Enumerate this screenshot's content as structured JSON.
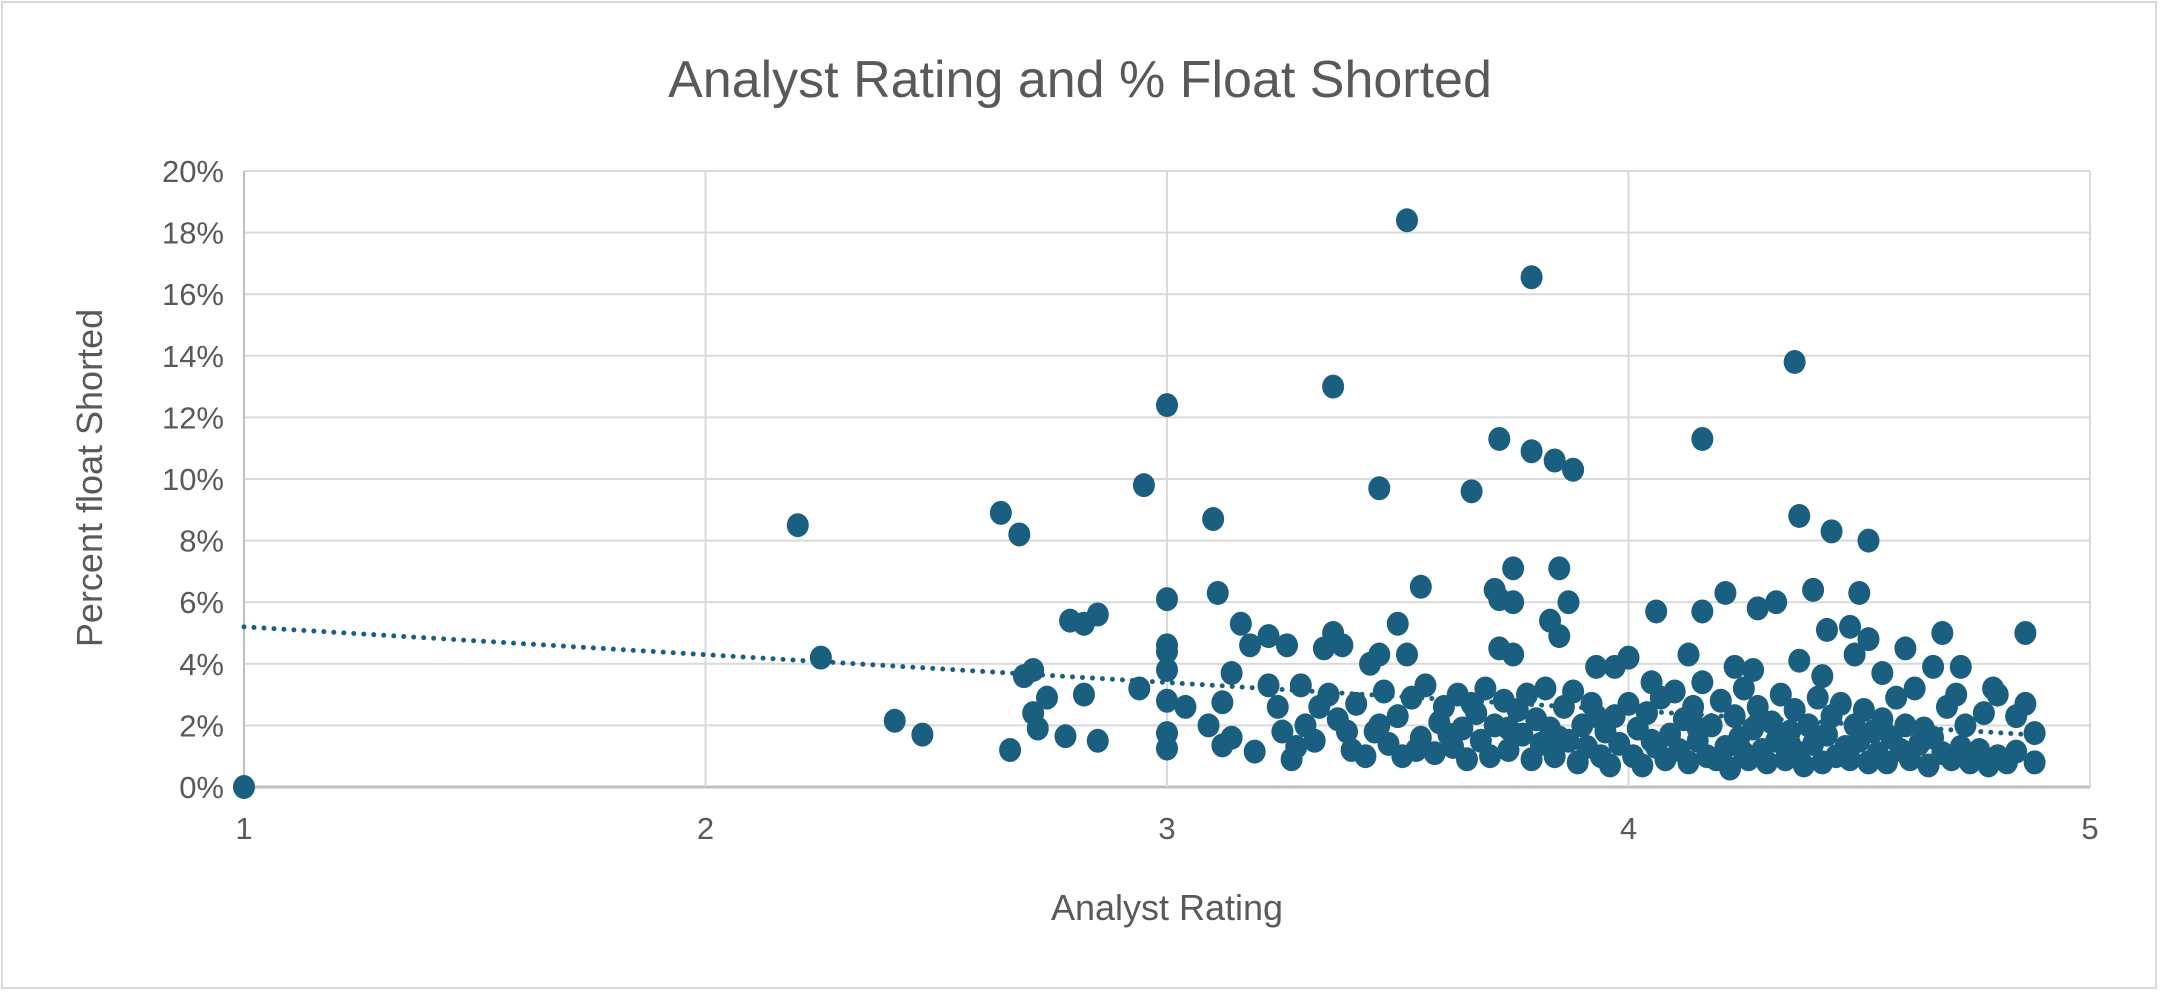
{
  "chart_data": {
    "type": "scatter",
    "title": "Analyst Rating and % Float Shorted",
    "xlabel": "Analyst Rating",
    "ylabel": "Percent float Shorted",
    "xlim": [
      1,
      5
    ],
    "ylim": [
      0,
      20
    ],
    "x_ticks": [
      "1",
      "2",
      "3",
      "4",
      "5"
    ],
    "y_ticks": [
      "0%",
      "2%",
      "4%",
      "6%",
      "8%",
      "10%",
      "12%",
      "14%",
      "16%",
      "18%",
      "20%"
    ],
    "grid": true,
    "legend": "none",
    "marker_color": "#1b5f80",
    "trendline": {
      "type": "linear",
      "style": "dotted",
      "start": [
        1,
        5.2
      ],
      "end": [
        4.87,
        1.7
      ]
    },
    "points": [
      [
        1,
        0
      ],
      [
        2.2,
        8.5
      ],
      [
        2.25,
        4.2
      ],
      [
        2.41,
        2.15
      ],
      [
        2.47,
        1.7
      ],
      [
        2.64,
        8.9
      ],
      [
        2.68,
        8.2
      ],
      [
        2.66,
        1.2
      ],
      [
        2.69,
        3.6
      ],
      [
        2.71,
        3.8
      ],
      [
        2.71,
        2.4
      ],
      [
        2.72,
        1.9
      ],
      [
        2.74,
        2.9
      ],
      [
        2.78,
        1.65
      ],
      [
        2.79,
        5.4
      ],
      [
        2.82,
        5.3
      ],
      [
        2.85,
        5.6
      ],
      [
        2.82,
        3.0
      ],
      [
        2.85,
        1.5
      ],
      [
        2.95,
        9.8
      ],
      [
        2.94,
        3.2
      ],
      [
        3.0,
        12.4
      ],
      [
        3.0,
        6.1
      ],
      [
        3.0,
        4.6
      ],
      [
        3.0,
        4.4
      ],
      [
        3.0,
        3.8
      ],
      [
        3.0,
        2.8
      ],
      [
        3.0,
        1.75
      ],
      [
        3.0,
        1.25
      ],
      [
        3.1,
        8.7
      ],
      [
        3.11,
        6.3
      ],
      [
        3.04,
        2.6
      ],
      [
        3.09,
        2.0
      ],
      [
        3.12,
        2.75
      ],
      [
        3.14,
        3.7
      ],
      [
        3.12,
        1.35
      ],
      [
        3.14,
        1.6
      ],
      [
        3.16,
        5.3
      ],
      [
        3.18,
        4.6
      ],
      [
        3.22,
        4.9
      ],
      [
        3.26,
        4.6
      ],
      [
        3.19,
        1.15
      ],
      [
        3.22,
        3.3
      ],
      [
        3.24,
        2.6
      ],
      [
        3.27,
        0.9
      ],
      [
        3.29,
        3.3
      ],
      [
        3.36,
        13.0
      ],
      [
        3.46,
        9.7
      ],
      [
        3.36,
        5.0
      ],
      [
        3.34,
        4.5
      ],
      [
        3.38,
        4.6
      ],
      [
        3.46,
        4.3
      ],
      [
        3.44,
        4.0
      ],
      [
        3.5,
        5.3
      ],
      [
        3.52,
        18.4
      ],
      [
        3.52,
        4.3
      ],
      [
        3.55,
        6.5
      ],
      [
        3.66,
        9.6
      ],
      [
        3.72,
        11.3
      ],
      [
        3.79,
        16.55
      ],
      [
        3.79,
        10.9
      ],
      [
        3.84,
        10.6
      ],
      [
        3.88,
        10.3
      ],
      [
        3.75,
        7.1
      ],
      [
        3.85,
        7.1
      ],
      [
        3.71,
        6.4
      ],
      [
        3.72,
        6.1
      ],
      [
        3.75,
        6.0
      ],
      [
        3.87,
        6.0
      ],
      [
        3.72,
        4.5
      ],
      [
        3.75,
        4.3
      ],
      [
        3.83,
        5.4
      ],
      [
        3.85,
        4.9
      ],
      [
        3.93,
        3.9
      ],
      [
        3.97,
        3.9
      ],
      [
        4.0,
        4.2
      ],
      [
        4.06,
        5.7
      ],
      [
        4.36,
        13.8
      ],
      [
        4.16,
        11.3
      ],
      [
        4.37,
        8.8
      ],
      [
        4.44,
        8.3
      ],
      [
        4.52,
        8.0
      ],
      [
        4.4,
        6.4
      ],
      [
        4.21,
        6.3
      ],
      [
        4.16,
        5.7
      ],
      [
        4.32,
        6.0
      ],
      [
        4.28,
        5.8
      ],
      [
        4.43,
        5.1
      ],
      [
        4.48,
        5.2
      ],
      [
        4.5,
        6.3
      ],
      [
        4.52,
        4.8
      ],
      [
        4.55,
        3.7
      ],
      [
        4.6,
        4.5
      ],
      [
        4.68,
        5.0
      ],
      [
        4.86,
        5.0
      ],
      [
        4.37,
        4.1
      ],
      [
        4.42,
        3.6
      ],
      [
        4.49,
        4.3
      ],
      [
        4.13,
        4.3
      ],
      [
        4.05,
        3.4
      ],
      [
        4.23,
        3.9
      ],
      [
        4.27,
        3.8
      ],
      [
        4.66,
        3.9
      ],
      [
        4.72,
        3.9
      ],
      [
        4.62,
        3.2
      ],
      [
        4.71,
        3.0
      ],
      [
        4.79,
        3.2
      ],
      [
        4.8,
        3.0
      ],
      [
        4.77,
        2.4
      ],
      [
        4.86,
        2.7
      ],
      [
        4.84,
        2.3
      ],
      [
        4.88,
        1.75
      ],
      [
        4.88,
        0.8
      ],
      [
        4.84,
        1.15
      ],
      [
        3.3,
        2.0
      ],
      [
        3.32,
        1.5
      ],
      [
        3.35,
        3.0
      ],
      [
        3.37,
        2.2
      ],
      [
        3.4,
        1.2
      ],
      [
        3.41,
        2.7
      ],
      [
        3.43,
        1.0
      ],
      [
        3.45,
        1.8
      ],
      [
        3.47,
        3.1
      ],
      [
        3.48,
        1.4
      ],
      [
        3.5,
        2.3
      ],
      [
        3.51,
        1.0
      ],
      [
        3.53,
        2.9
      ],
      [
        3.55,
        1.6
      ],
      [
        3.56,
        3.3
      ],
      [
        3.58,
        1.1
      ],
      [
        3.59,
        2.1
      ],
      [
        3.6,
        2.6
      ],
      [
        3.62,
        1.3
      ],
      [
        3.63,
        3.0
      ],
      [
        3.64,
        1.9
      ],
      [
        3.65,
        0.9
      ],
      [
        3.67,
        2.4
      ],
      [
        3.68,
        1.5
      ],
      [
        3.69,
        3.2
      ],
      [
        3.7,
        1.0
      ],
      [
        3.71,
        2.0
      ],
      [
        3.73,
        2.8
      ],
      [
        3.74,
        1.2
      ],
      [
        3.76,
        2.5
      ],
      [
        3.77,
        1.7
      ],
      [
        3.78,
        3.0
      ],
      [
        3.79,
        0.9
      ],
      [
        3.8,
        2.2
      ],
      [
        3.81,
        1.4
      ],
      [
        3.82,
        3.2
      ],
      [
        3.83,
        1.9
      ],
      [
        3.84,
        1.0
      ],
      [
        3.86,
        2.6
      ],
      [
        3.87,
        1.5
      ],
      [
        3.88,
        3.1
      ],
      [
        3.89,
        0.8
      ],
      [
        3.9,
        2.0
      ],
      [
        3.91,
        1.3
      ],
      [
        3.92,
        2.7
      ],
      [
        3.94,
        1.0
      ],
      [
        3.95,
        1.8
      ],
      [
        3.96,
        0.7
      ],
      [
        3.97,
        2.3
      ],
      [
        3.98,
        1.4
      ],
      [
        4.0,
        2.7
      ],
      [
        4.01,
        1.0
      ],
      [
        4.02,
        1.9
      ],
      [
        4.03,
        0.7
      ],
      [
        4.04,
        2.4
      ],
      [
        4.06,
        1.3
      ],
      [
        4.07,
        2.9
      ],
      [
        4.08,
        0.9
      ],
      [
        4.09,
        1.7
      ],
      [
        4.1,
        3.1
      ],
      [
        4.11,
        1.2
      ],
      [
        4.12,
        2.2
      ],
      [
        4.13,
        0.8
      ],
      [
        4.14,
        2.6
      ],
      [
        4.15,
        1.5
      ],
      [
        4.16,
        3.4
      ],
      [
        4.17,
        1.0
      ],
      [
        4.18,
        2.0
      ],
      [
        4.19,
        0.9
      ],
      [
        4.2,
        2.8
      ],
      [
        4.21,
        1.3
      ],
      [
        4.22,
        0.6
      ],
      [
        4.23,
        2.3
      ],
      [
        4.24,
        1.6
      ],
      [
        4.25,
        3.2
      ],
      [
        4.26,
        0.9
      ],
      [
        4.27,
        1.9
      ],
      [
        4.28,
        2.6
      ],
      [
        4.29,
        1.2
      ],
      [
        4.3,
        0.8
      ],
      [
        4.31,
        2.1
      ],
      [
        4.32,
        1.5
      ],
      [
        4.33,
        3.0
      ],
      [
        4.34,
        0.9
      ],
      [
        4.35,
        1.8
      ],
      [
        4.36,
        2.5
      ],
      [
        4.37,
        1.1
      ],
      [
        4.38,
        0.7
      ],
      [
        4.39,
        2.0
      ],
      [
        4.4,
        1.4
      ],
      [
        4.41,
        2.9
      ],
      [
        4.42,
        0.8
      ],
      [
        4.43,
        1.7
      ],
      [
        4.44,
        2.3
      ],
      [
        4.45,
        1.0
      ],
      [
        4.46,
        2.7
      ],
      [
        4.47,
        1.3
      ],
      [
        4.48,
        0.9
      ],
      [
        4.49,
        2.0
      ],
      [
        4.5,
        1.5
      ],
      [
        4.51,
        2.5
      ],
      [
        4.52,
        0.8
      ],
      [
        4.53,
        1.8
      ],
      [
        4.54,
        1.1
      ],
      [
        4.55,
        2.2
      ],
      [
        4.56,
        0.8
      ],
      [
        4.57,
        1.6
      ],
      [
        4.58,
        2.9
      ],
      [
        4.59,
        1.2
      ],
      [
        4.6,
        2.0
      ],
      [
        4.61,
        0.9
      ],
      [
        4.63,
        1.4
      ],
      [
        4.64,
        1.9
      ],
      [
        4.65,
        0.7
      ],
      [
        4.66,
        1.6
      ],
      [
        4.68,
        1.1
      ],
      [
        4.69,
        2.6
      ],
      [
        4.7,
        0.9
      ],
      [
        4.72,
        1.3
      ],
      [
        4.73,
        2.0
      ],
      [
        4.74,
        0.8
      ],
      [
        4.76,
        1.2
      ],
      [
        4.78,
        0.7
      ],
      [
        4.8,
        1.0
      ],
      [
        4.82,
        0.8
      ],
      [
        3.25,
        1.8
      ],
      [
        3.28,
        1.3
      ],
      [
        3.33,
        2.6
      ],
      [
        3.39,
        1.8
      ],
      [
        3.46,
        2.0
      ],
      [
        3.54,
        1.2
      ],
      [
        3.61,
        1.7
      ],
      [
        3.66,
        2.7
      ],
      [
        3.74,
        1.9
      ],
      [
        3.85,
        1.6
      ],
      [
        3.93,
        2.3
      ],
      [
        4.05,
        1.5
      ],
      [
        4.15,
        1.9
      ],
      [
        4.25,
        1.1
      ],
      [
        4.35,
        1.4
      ]
    ]
  }
}
